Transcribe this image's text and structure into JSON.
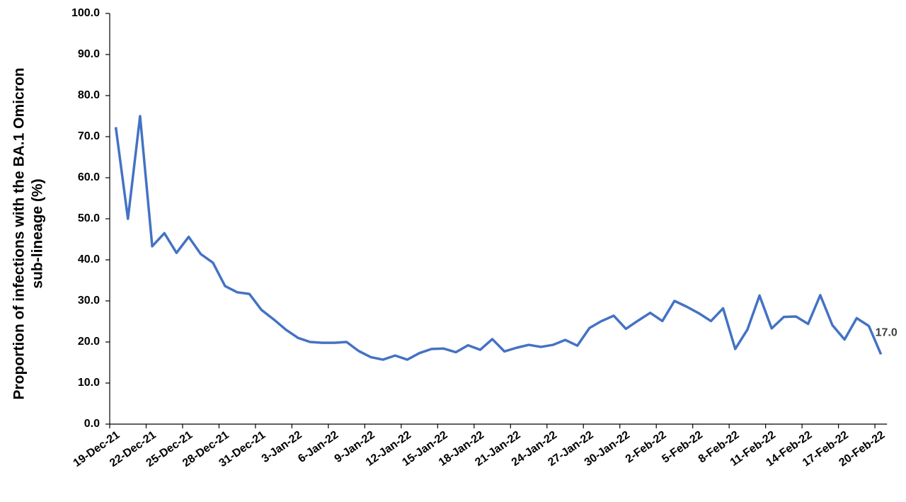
{
  "chart_data": {
    "type": "line",
    "y_label": [
      "Proportion of infections with the BA.1 Omicron",
      "sub-lineage (%)"
    ],
    "categories": [
      "19-Dec-21",
      null,
      null,
      "22-Dec-21",
      null,
      null,
      "25-Dec-21",
      null,
      null,
      "28-Dec-21",
      null,
      null,
      "31-Dec-21",
      null,
      null,
      "3-Jan-22",
      null,
      null,
      "6-Jan-22",
      null,
      null,
      "9-Jan-22",
      null,
      null,
      "12-Jan-22",
      null,
      null,
      "15-Jan-22",
      null,
      null,
      "18-Jan-22",
      null,
      null,
      "21-Jan-22",
      null,
      null,
      "24-Jan-22",
      null,
      null,
      "27-Jan-22",
      null,
      null,
      "30-Jan-22",
      null,
      null,
      "2-Feb-22",
      null,
      null,
      "5-Feb-22",
      null,
      null,
      "8-Feb-22",
      null,
      null,
      "11-Feb-22",
      null,
      null,
      "14-Feb-22",
      null,
      null,
      "17-Feb-22",
      null,
      null,
      "20-Feb-22"
    ],
    "series": [
      {
        "color": "#4472c4",
        "values": [
          72.3,
          50.0,
          75.0,
          43.3,
          46.5,
          41.7,
          45.6,
          41.4,
          39.3,
          33.6,
          32.1,
          31.7,
          27.8,
          25.5,
          23.0,
          21.0,
          20.0,
          19.8,
          19.8,
          20.0,
          17.8,
          16.3,
          15.7,
          16.7,
          15.7,
          17.3,
          18.3,
          18.4,
          17.5,
          19.2,
          18.1,
          20.7,
          17.7,
          18.6,
          19.3,
          18.8,
          19.3,
          20.5,
          19.1,
          23.4,
          25.1,
          26.4,
          23.2,
          25.2,
          27.1,
          25.1,
          30.0,
          28.6,
          27.0,
          25.1,
          28.2,
          18.3,
          23.0,
          31.3,
          23.3,
          26.1,
          26.2,
          24.4,
          31.4,
          24.1,
          20.6,
          25.8,
          23.9,
          17.0
        ],
        "value_labels": [
          null,
          null,
          null,
          null,
          null,
          null,
          null,
          null,
          null,
          null,
          null,
          null,
          null,
          null,
          null,
          null,
          null,
          null,
          null,
          null,
          null,
          null,
          null,
          null,
          null,
          null,
          null,
          null,
          null,
          null,
          null,
          null,
          null,
          null,
          null,
          null,
          null,
          null,
          null,
          null,
          null,
          null,
          null,
          null,
          null,
          null,
          null,
          null,
          null,
          null,
          null,
          null,
          null,
          null,
          null,
          null,
          null,
          null,
          null,
          null,
          null,
          null,
          null,
          "17.0"
        ]
      }
    ],
    "ylim": [
      0,
      100
    ],
    "yticks": [
      {
        "value": 0,
        "label": "0.0"
      },
      {
        "value": 10,
        "label": "10.0"
      },
      {
        "value": 20,
        "label": "20.0"
      },
      {
        "value": 30,
        "label": "30.0"
      },
      {
        "value": 40,
        "label": "40.0"
      },
      {
        "value": 50,
        "label": "50.0"
      },
      {
        "value": 60,
        "label": "60.0"
      },
      {
        "value": 70,
        "label": "70.0"
      },
      {
        "value": 80,
        "label": "80.0"
      },
      {
        "value": 90,
        "label": "90.0"
      },
      {
        "value": 100,
        "label": "100.0"
      }
    ],
    "grid": false
  }
}
